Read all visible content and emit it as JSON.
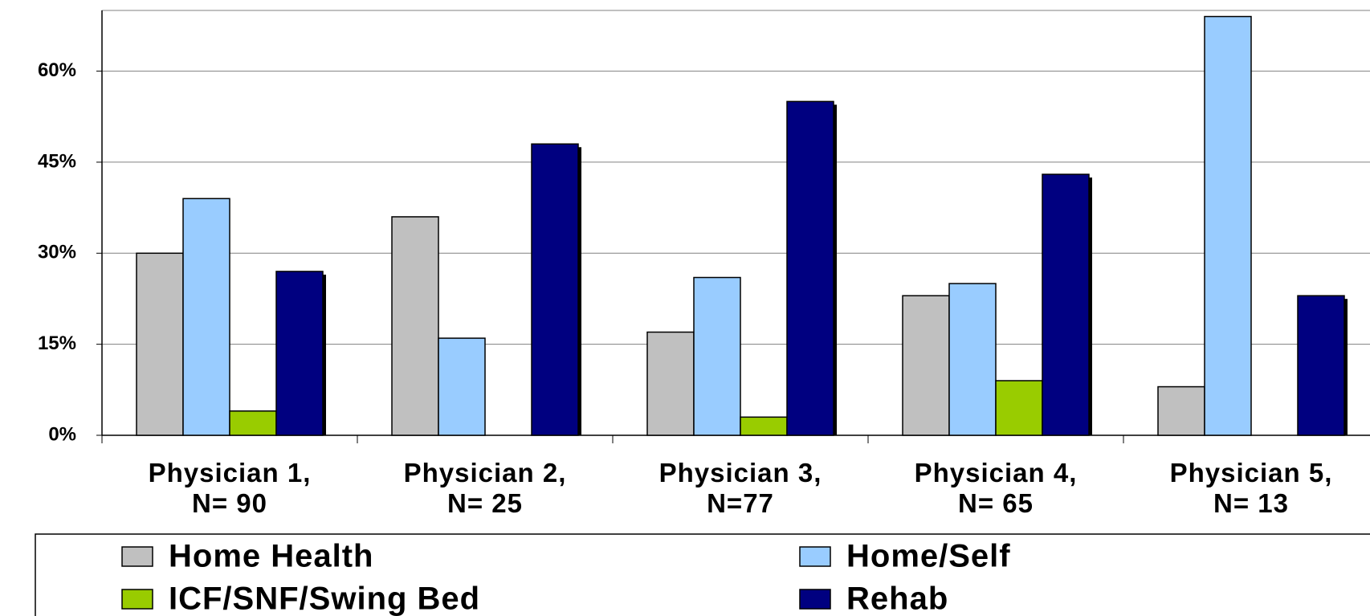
{
  "chart_data": {
    "type": "bar",
    "categories": [
      "Physician 1,\nN= 90",
      "Physician 2,\nN= 25",
      "Physician 3,\nN=77",
      "Physician 4,\nN= 65",
      "Physician 5,\nN= 13"
    ],
    "series": [
      {
        "name": "Home Health",
        "color": "#c0c0c0",
        "values": [
          30,
          36,
          17,
          23,
          8
        ]
      },
      {
        "name": "Home/Self",
        "color": "#99ccff",
        "values": [
          39,
          16,
          26,
          25,
          69
        ]
      },
      {
        "name": "ICF/SNF/Swing Bed",
        "color": "#99cc00",
        "values": [
          4,
          0,
          3,
          9,
          0
        ]
      },
      {
        "name": "Rehab",
        "color": "#000080",
        "values": [
          27,
          48,
          55,
          43,
          23
        ]
      }
    ],
    "ylim": [
      0,
      70
    ],
    "yticks": [
      {
        "value": 0,
        "label": "0%"
      },
      {
        "value": 15,
        "label": "15%"
      },
      {
        "value": 30,
        "label": "30%"
      },
      {
        "value": 45,
        "label": "45%"
      },
      {
        "value": 60,
        "label": "60%"
      }
    ],
    "grid": true
  }
}
